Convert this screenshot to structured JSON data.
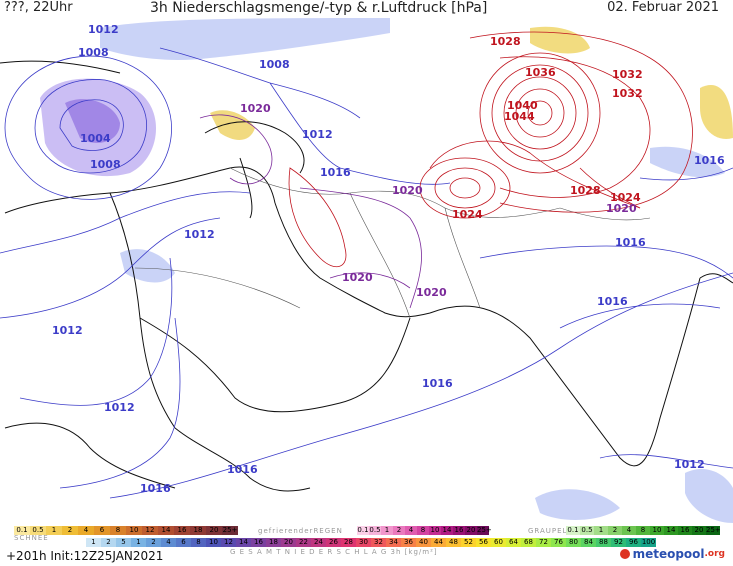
{
  "header": {
    "time_label": "???, 22Uhr",
    "title": "3h Niederschlagsmenge/-typ & r.Luftdruck [hPa]",
    "date": "02. Februar 2021"
  },
  "map": {
    "isobar_labels": [
      {
        "text": "1012",
        "color": "blue"
      },
      {
        "text": "1008",
        "color": "blue"
      },
      {
        "text": "1008",
        "color": "blue"
      },
      {
        "text": "1004",
        "color": "blue"
      },
      {
        "text": "1008",
        "color": "blue"
      },
      {
        "text": "1020",
        "color": "purple"
      },
      {
        "text": "1012",
        "color": "blue"
      },
      {
        "text": "1016",
        "color": "blue"
      },
      {
        "text": "1020",
        "color": "purple"
      },
      {
        "text": "1028",
        "color": "red"
      },
      {
        "text": "1036",
        "color": "red"
      },
      {
        "text": "1032",
        "color": "red"
      },
      {
        "text": "1032",
        "color": "red"
      },
      {
        "text": "1040",
        "color": "red"
      },
      {
        "text": "1044",
        "color": "red"
      },
      {
        "text": "1016",
        "color": "blue"
      },
      {
        "text": "1028",
        "color": "red"
      },
      {
        "text": "1024",
        "color": "red"
      },
      {
        "text": "1020",
        "color": "purple"
      },
      {
        "text": "1024",
        "color": "red"
      },
      {
        "text": "1012",
        "color": "blue"
      },
      {
        "text": "1016",
        "color": "blue"
      },
      {
        "text": "1020",
        "color": "purple"
      },
      {
        "text": "1020",
        "color": "purple"
      },
      {
        "text": "1016",
        "color": "blue"
      },
      {
        "text": "1012",
        "color": "blue"
      },
      {
        "text": "1016",
        "color": "blue"
      },
      {
        "text": "1012",
        "color": "blue"
      },
      {
        "text": "1016",
        "color": "blue"
      },
      {
        "text": "1016",
        "color": "blue"
      },
      {
        "text": "1012",
        "color": "blue"
      }
    ],
    "colors": {
      "blue": "#3c3cc8",
      "purple": "#7a2a9a",
      "red": "#c0141e"
    }
  },
  "legend": {
    "snow_label": "SCHNEE",
    "snow_scale": [
      "0.1",
      "0.5",
      "1",
      "2",
      "4",
      "6",
      "8",
      "10",
      "12",
      "14",
      "16",
      "18",
      "20",
      "25+"
    ],
    "freezing_rain_label": "gefrierenderREGEN",
    "freezing_rain_scale": [
      "0.1",
      "0.5",
      "1",
      "2",
      "4",
      "8",
      "10",
      "14",
      "16",
      "20",
      "25+"
    ],
    "graupel_label": "GRAUPEL",
    "graupel_scale": [
      "0.1",
      "0.5",
      "1",
      "2",
      "4",
      "8",
      "10",
      "14",
      "16",
      "20",
      "25+"
    ],
    "total_label": "G E S A M T N I E D E R S C H L A G   3h   [kg/m²]",
    "total_scale": [
      "1",
      "2",
      "5",
      "1",
      "2",
      "4",
      "6",
      "8",
      "10",
      "12",
      "14",
      "16",
      "18",
      "20",
      "22",
      "24",
      "26",
      "28",
      "30",
      "32",
      "34",
      "36",
      "40",
      "44",
      "48",
      "52",
      "56",
      "60",
      "64",
      "68",
      "72",
      "76",
      "80",
      "84",
      "88",
      "92",
      "96",
      "100"
    ]
  },
  "footer": {
    "run_info": "+201h Init:12Z25JAN2021",
    "logo_text": "meteopool",
    "logo_suffix": ".org"
  }
}
